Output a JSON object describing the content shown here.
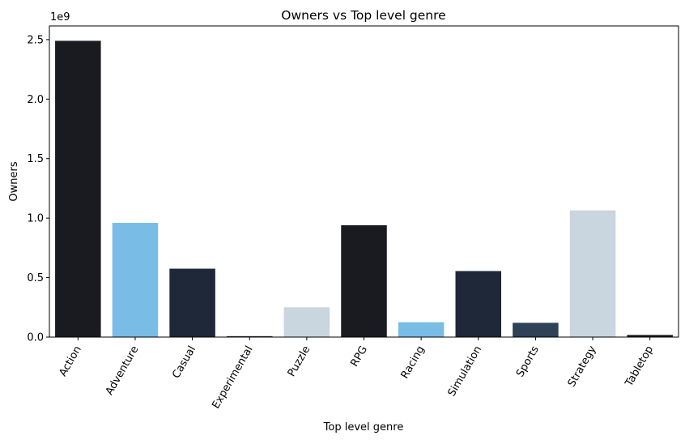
{
  "chart_data": {
    "type": "bar",
    "title": "Owners vs Top level genre",
    "xlabel": "Top level genre",
    "ylabel": "Owners",
    "y_offset_label": "1e9",
    "categories": [
      "Action",
      "Adventure",
      "Casual",
      "Experimental",
      "Puzzle",
      "RPG",
      "Racing",
      "Simulation",
      "Sports",
      "Strategy",
      "Tabletop"
    ],
    "values": [
      2490000000,
      960000000,
      575000000,
      8000000,
      250000000,
      940000000,
      125000000,
      555000000,
      120000000,
      1065000000,
      18000000
    ],
    "colors": [
      "#1a1b21",
      "#79bde6",
      "#1f2838",
      "#1f2838",
      "#c9d5df",
      "#1a1b21",
      "#79bde6",
      "#1f2838",
      "#2e4157",
      "#c9d5df",
      "#1a1b21"
    ],
    "yticks": [
      0,
      500000000,
      1000000000,
      1500000000,
      2000000000,
      2500000000
    ],
    "ytick_labels": [
      "0.0",
      "0.5",
      "1.0",
      "1.5",
      "2.0",
      "2.5"
    ],
    "ylim": [
      0,
      2615000000
    ],
    "grid": false,
    "legend": "none"
  }
}
